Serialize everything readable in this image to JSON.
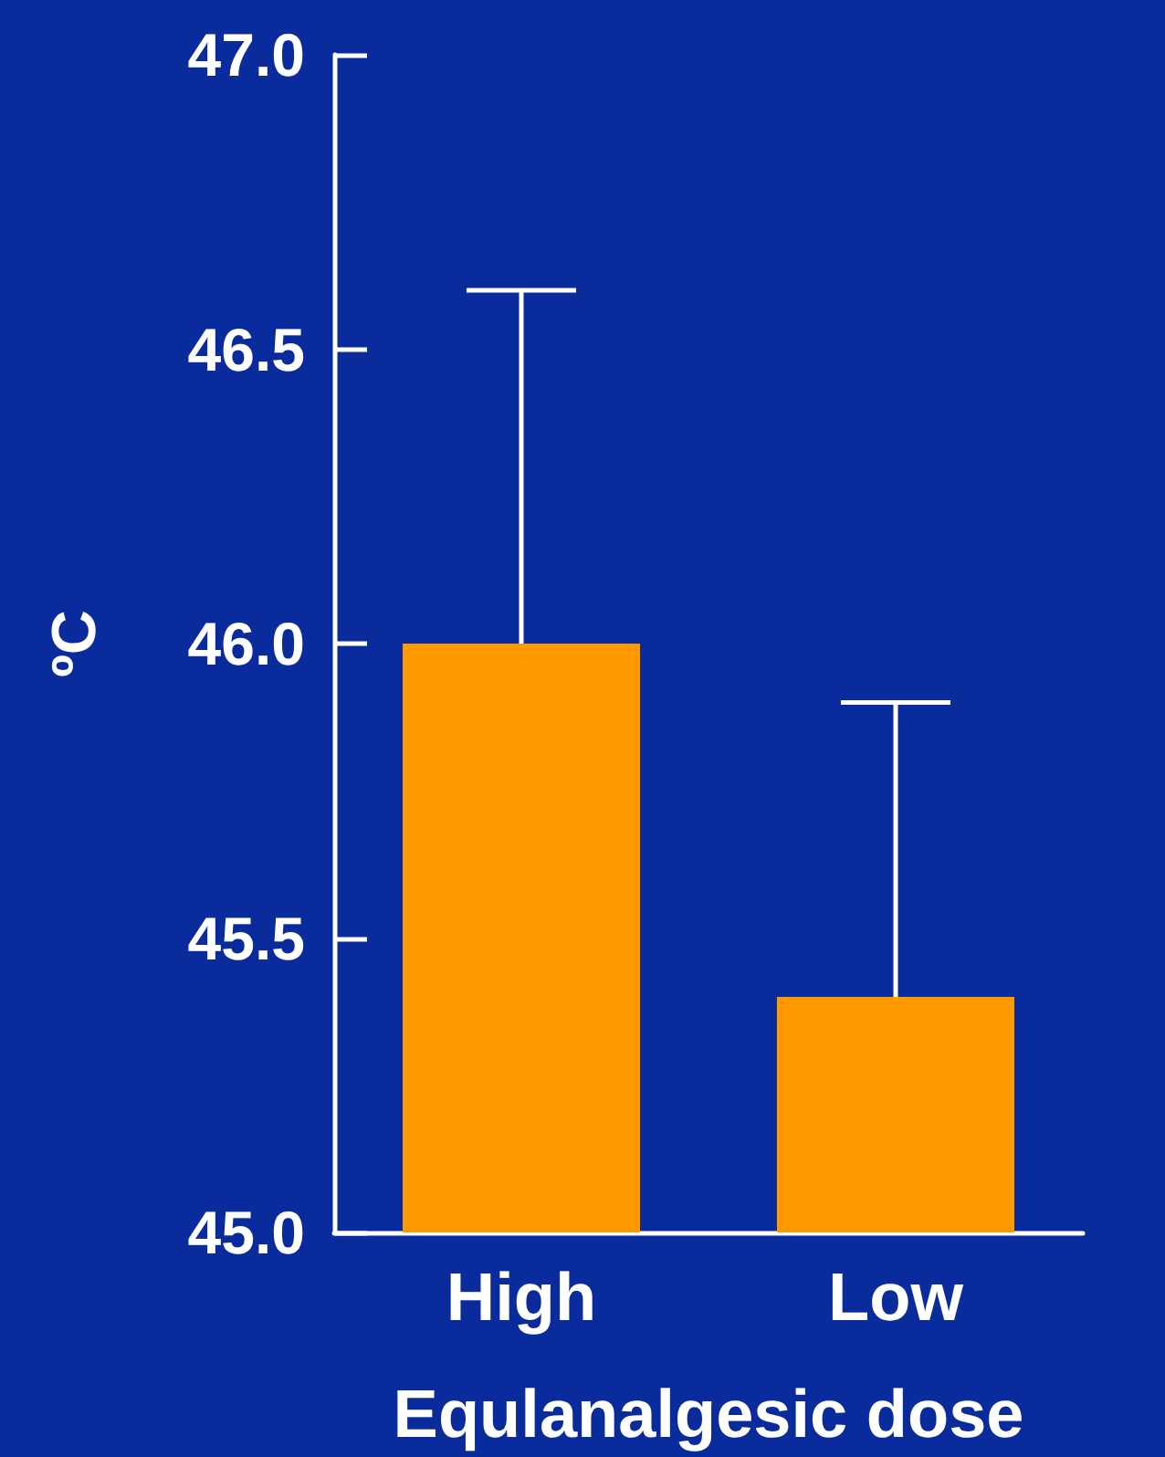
{
  "chart_data": {
    "type": "bar",
    "categories": [
      "High",
      "Low"
    ],
    "values": [
      46.0,
      45.4
    ],
    "color": "#ff9900",
    "errors": [
      [
        46.0,
        46.6
      ],
      [
        45.4,
        45.9
      ]
    ],
    "xlabel": "Equlanalgesic dose",
    "ylabel": "ºC",
    "ylim": [
      45,
      47
    ],
    "yticks": [
      {
        "value": 45,
        "label": "45.0"
      },
      {
        "value": 45.5,
        "label": "45.5"
      },
      {
        "value": 46,
        "label": "46.0"
      },
      {
        "value": 46.5,
        "label": "46.5"
      },
      {
        "value": 47,
        "label": "47.0"
      }
    ]
  }
}
